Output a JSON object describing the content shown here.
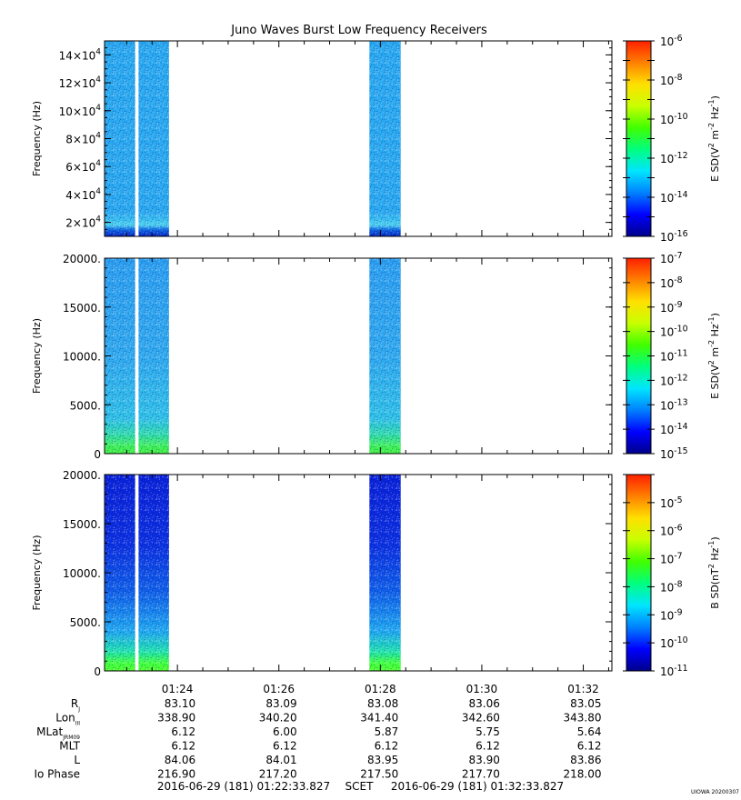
{
  "title": "Juno Waves Burst Low Frequency Receivers",
  "colors": {
    "spectrogram_ramp": [
      "#00008b",
      "#0000ff",
      "#0080ff",
      "#00e5ff",
      "#00ff80",
      "#40ff00",
      "#c8ff00",
      "#ffe000",
      "#ff8000",
      "#ff2000"
    ]
  },
  "chart_data": [
    {
      "type": "heatmap",
      "panel": "top",
      "ylabel": "Frequency (Hz)",
      "ylim": [
        10000,
        150000
      ],
      "yticks": [
        {
          "v": 20000,
          "m": "2",
          "e": "4"
        },
        {
          "v": 40000,
          "m": "4",
          "e": "4"
        },
        {
          "v": 60000,
          "m": "6",
          "e": "4"
        },
        {
          "v": 80000,
          "m": "8",
          "e": "4"
        },
        {
          "v": 100000,
          "m": "10",
          "e": "4"
        },
        {
          "v": 120000,
          "m": "12",
          "e": "4"
        },
        {
          "v": 140000,
          "m": "14",
          "e": "4"
        }
      ],
      "colorbar_label": "E SD(V^2 m^-2 Hz^-1)",
      "colorbar_label_parts": {
        "a": "E SD(V",
        "b": "2",
        "c": " m",
        "d": "-2",
        "e": " Hz",
        "f": "-1",
        "g": ")"
      },
      "colorbar_scale": "log",
      "colorbar_range": [
        -16,
        -6
      ],
      "colorbar_ticks": [
        {
          "m": "10",
          "e": "-6"
        },
        {
          "m": "10",
          "e": "-8"
        },
        {
          "m": "10",
          "e": "-10"
        },
        {
          "m": "10",
          "e": "-12"
        },
        {
          "m": "10",
          "e": "-14"
        },
        {
          "m": "10",
          "e": "-16"
        }
      ],
      "data_intervals_x": [
        [
          "01:22:33.827",
          "01:23:10"
        ],
        [
          "01:23:14",
          "01:23:50"
        ],
        [
          "01:27:47",
          "01:28:24"
        ]
      ],
      "dominant_level": "10^-14"
    },
    {
      "type": "heatmap",
      "panel": "middle",
      "ylabel": "Frequency (Hz)",
      "ylim": [
        0,
        20000
      ],
      "yticks": [
        {
          "v": 0,
          "label": "0"
        },
        {
          "v": 5000,
          "label": "5000."
        },
        {
          "v": 10000,
          "label": "10000."
        },
        {
          "v": 15000,
          "label": "15000."
        },
        {
          "v": 20000,
          "label": "20000."
        }
      ],
      "colorbar_label": "E SD(V^2 m^-2 Hz^-1)",
      "colorbar_label_parts": {
        "a": "E SD(V",
        "b": "2",
        "c": " m",
        "d": "-2",
        "e": " Hz",
        "f": "-1",
        "g": ")"
      },
      "colorbar_scale": "log",
      "colorbar_range": [
        -15,
        -7
      ],
      "colorbar_ticks": [
        {
          "m": "10",
          "e": "-7"
        },
        {
          "m": "10",
          "e": "-8"
        },
        {
          "m": "10",
          "e": "-9"
        },
        {
          "m": "10",
          "e": "-10"
        },
        {
          "m": "10",
          "e": "-11"
        },
        {
          "m": "10",
          "e": "-12"
        },
        {
          "m": "10",
          "e": "-13"
        },
        {
          "m": "10",
          "e": "-14"
        },
        {
          "m": "10",
          "e": "-15"
        }
      ],
      "data_intervals_x": [
        [
          "01:22:33.827",
          "01:23:10"
        ],
        [
          "01:23:14",
          "01:23:50"
        ],
        [
          "01:27:47",
          "01:28:24"
        ]
      ],
      "dominant_level": "10^-13"
    },
    {
      "type": "heatmap",
      "panel": "bottom",
      "ylabel": "Frequency (Hz)",
      "ylim": [
        0,
        20000
      ],
      "yticks": [
        {
          "v": 0,
          "label": "0"
        },
        {
          "v": 5000,
          "label": "5000."
        },
        {
          "v": 10000,
          "label": "10000."
        },
        {
          "v": 15000,
          "label": "15000."
        },
        {
          "v": 20000,
          "label": "20000."
        }
      ],
      "colorbar_label": "B SD(nT^2 Hz^-1)",
      "colorbar_label_parts": {
        "a": "B SD(nT",
        "b": "2",
        "c": " Hz",
        "d": "-1",
        "e": ")",
        "f": "",
        "g": ""
      },
      "colorbar_scale": "log",
      "colorbar_range": [
        -11,
        -4
      ],
      "colorbar_ticks": [
        {
          "m": "10",
          "e": "-5"
        },
        {
          "m": "10",
          "e": "-6"
        },
        {
          "m": "10",
          "e": "-7"
        },
        {
          "m": "10",
          "e": "-8"
        },
        {
          "m": "10",
          "e": "-9"
        },
        {
          "m": "10",
          "e": "-10"
        },
        {
          "m": "10",
          "e": "-11"
        }
      ],
      "data_intervals_x": [
        [
          "01:22:33.827",
          "01:23:10"
        ],
        [
          "01:23:14",
          "01:23:50"
        ],
        [
          "01:27:47",
          "01:28:24"
        ]
      ],
      "dominant_level": "10^-10"
    }
  ],
  "x_axis": {
    "start": "01:22:33.827",
    "end": "01:32:33.827",
    "tick_labels": [
      "01:24",
      "01:26",
      "01:28",
      "01:30",
      "01:32"
    ]
  },
  "ephemeris": {
    "rows": [
      {
        "label": "R",
        "sub": "J",
        "values": [
          "83.10",
          "83.09",
          "83.08",
          "83.06",
          "83.05"
        ]
      },
      {
        "label": "Lon",
        "sub": "III",
        "values": [
          "338.90",
          "340.20",
          "341.40",
          "342.60",
          "343.80"
        ]
      },
      {
        "label": "MLat",
        "sub": "JRM09",
        "values": [
          "6.12",
          "6.00",
          "5.87",
          "5.75",
          "5.64"
        ]
      },
      {
        "label": "MLT",
        "sub": "",
        "values": [
          "6.12",
          "6.12",
          "6.12",
          "6.12",
          "6.12"
        ]
      },
      {
        "label": "L",
        "sub": "",
        "values": [
          "84.06",
          "84.01",
          "83.95",
          "83.90",
          "83.86"
        ]
      },
      {
        "label": "Io Phase",
        "sub": "",
        "values": [
          "216.90",
          "217.20",
          "217.50",
          "217.70",
          "218.00"
        ]
      }
    ]
  },
  "footer": {
    "start_time": "2016-06-29 (181) 01:22:33.827",
    "scet": "SCET",
    "end_time": "2016-06-29 (181) 01:32:33.827",
    "stamp": "UIOWA 20200307"
  }
}
